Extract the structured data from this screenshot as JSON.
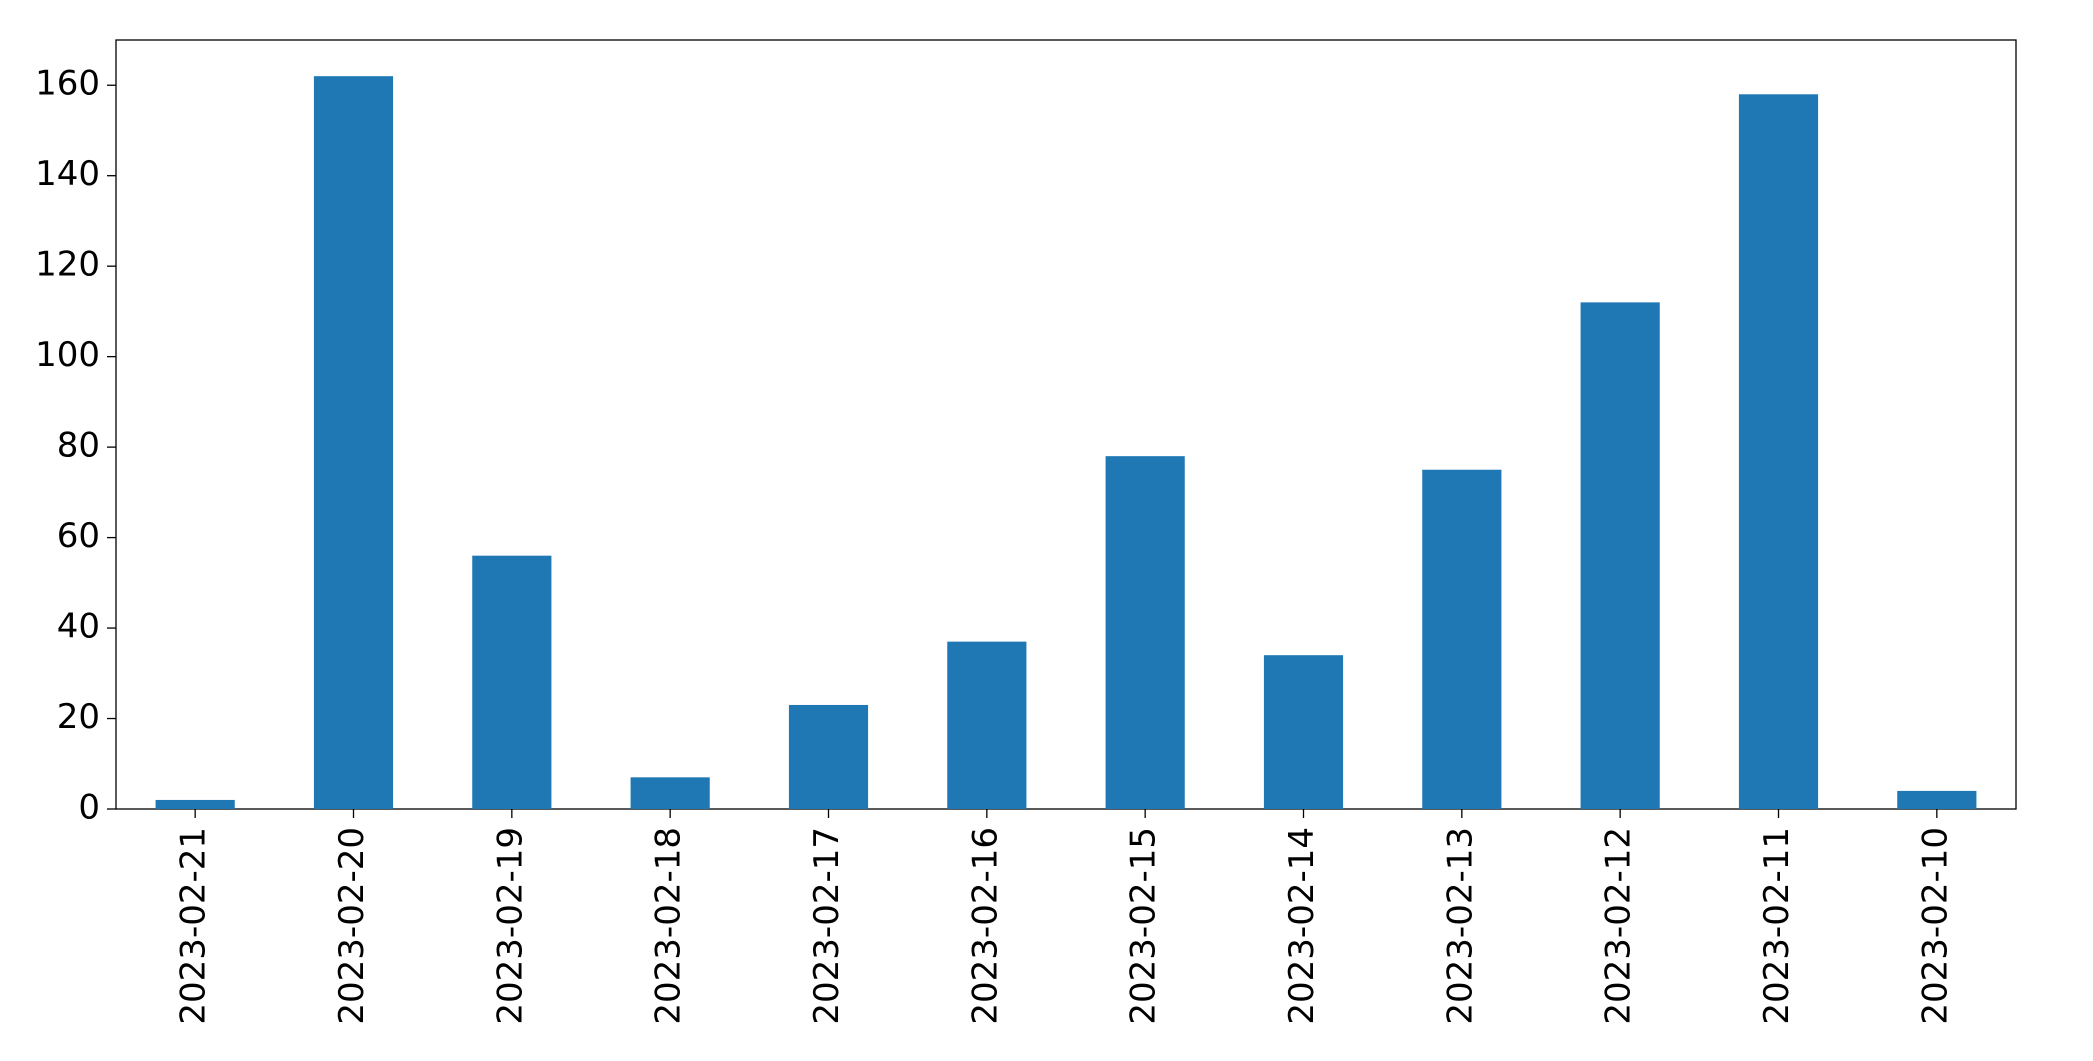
{
  "chart_data": {
    "type": "bar",
    "categories": [
      "2023-02-21",
      "2023-02-20",
      "2023-02-19",
      "2023-02-18",
      "2023-02-17",
      "2023-02-16",
      "2023-02-15",
      "2023-02-14",
      "2023-02-13",
      "2023-02-12",
      "2023-02-11",
      "2023-02-10"
    ],
    "values": [
      2,
      162,
      56,
      7,
      23,
      37,
      78,
      34,
      75,
      112,
      158,
      4
    ],
    "color": "#1f77b4",
    "ylim": [
      0,
      170
    ],
    "yticks": [
      0,
      20,
      40,
      60,
      80,
      100,
      120,
      140,
      160
    ],
    "grid": false
  }
}
